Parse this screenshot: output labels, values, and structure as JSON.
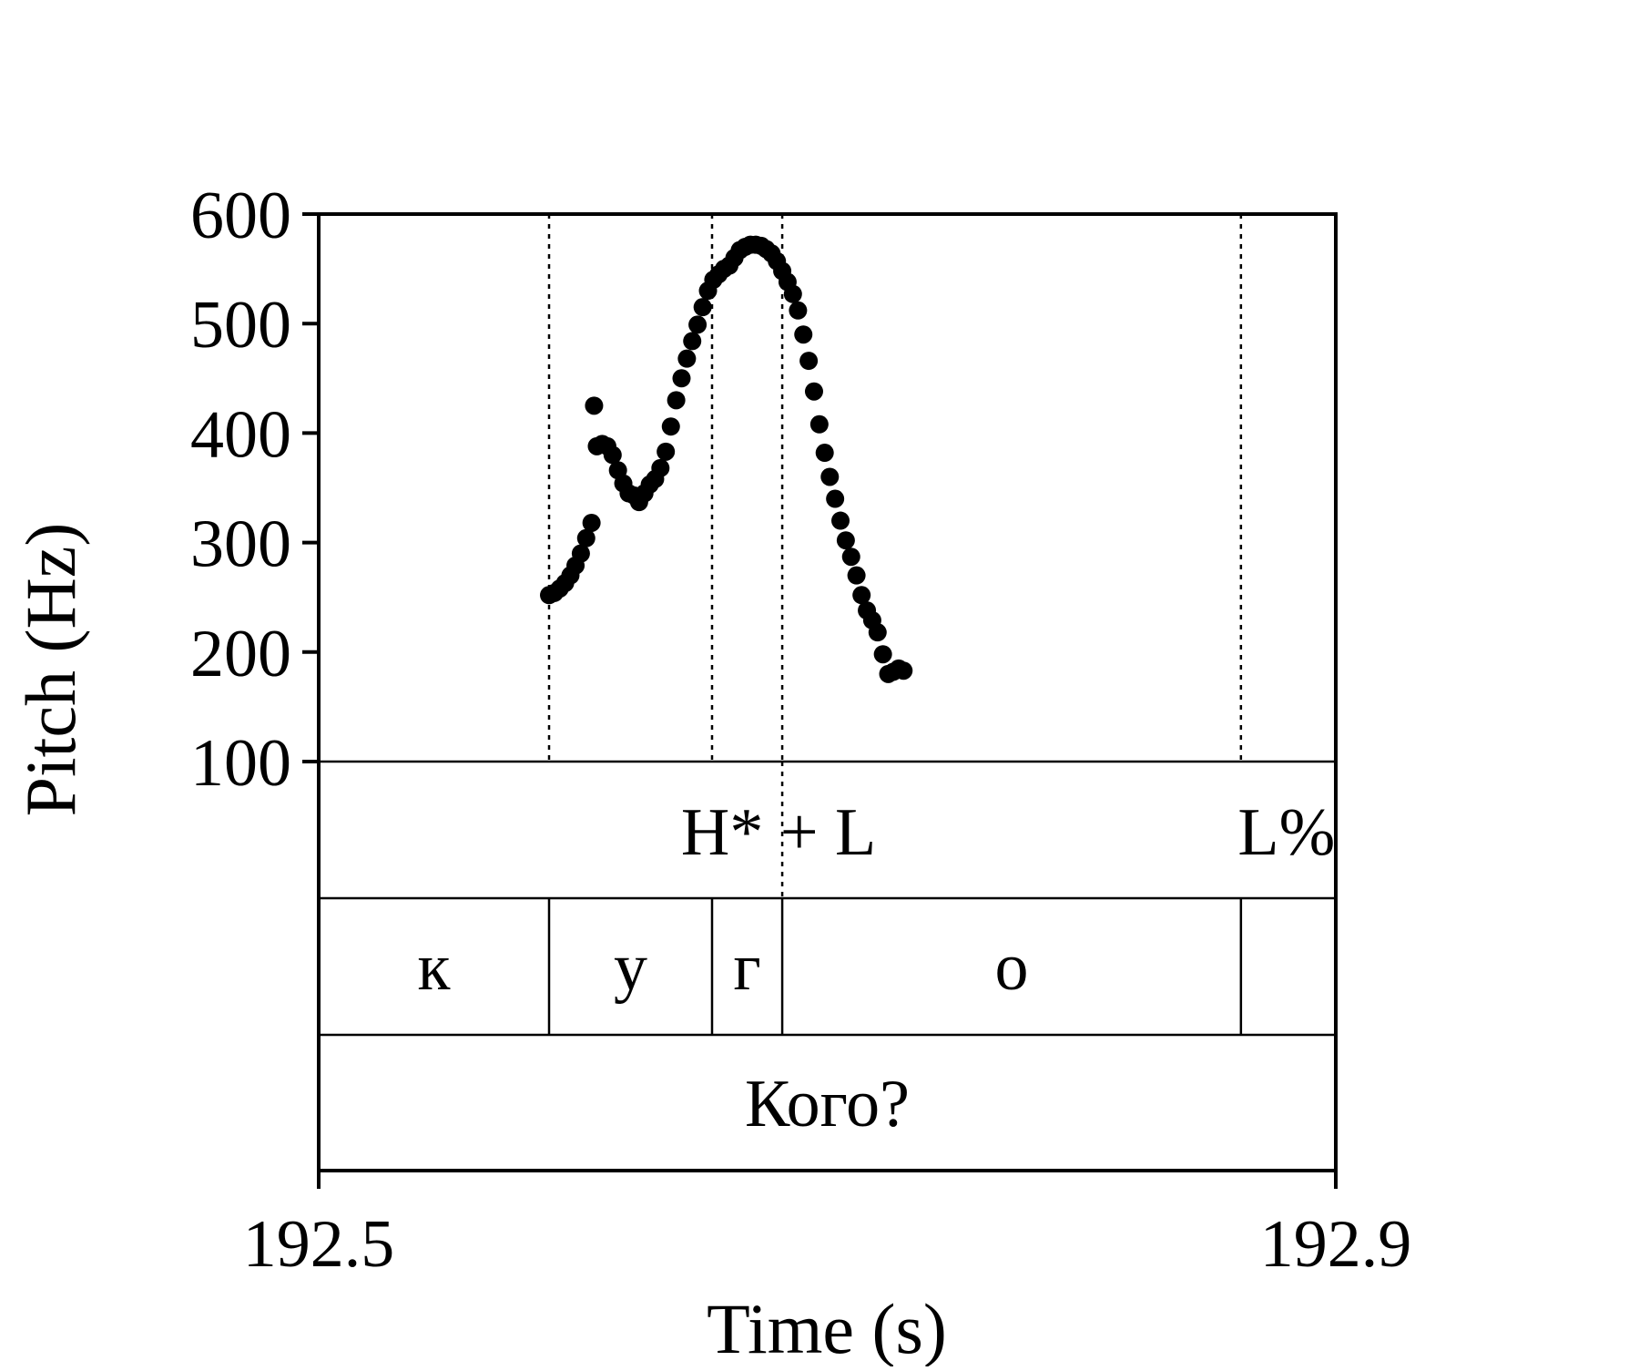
{
  "chart_data": {
    "type": "scatter",
    "ylabel": "Pitch (Hz)",
    "xlabel": "Time (s)",
    "xlim": [
      192.5,
      192.9
    ],
    "ylim": [
      100,
      600
    ],
    "x_ticks": [
      "192.5",
      "192.9"
    ],
    "y_ticks": [
      "100",
      "200",
      "300",
      "400",
      "500",
      "600"
    ],
    "boundaries": [
      192.5906,
      192.6547,
      192.6823,
      192.8627
    ],
    "tiers": {
      "tones": [
        {
          "label": "H* + L",
          "x": 192.6823
        },
        {
          "label": "L%",
          "x": 192.8627
        }
      ],
      "segments": [
        {
          "label": "к",
          "start": 192.5,
          "end": 192.5906
        },
        {
          "label": "у",
          "start": 192.5906,
          "end": 192.6547
        },
        {
          "label": "г",
          "start": 192.6547,
          "end": 192.6823
        },
        {
          "label": "о",
          "start": 192.6823,
          "end": 192.8627
        },
        {
          "label": "",
          "start": 192.8627,
          "end": 192.9
        }
      ],
      "word": "Кого?"
    },
    "series": [
      {
        "marker": "filled-circle",
        "color": "#000000",
        "points": [
          [
            192.5906,
            252
          ],
          [
            192.5927,
            254
          ],
          [
            192.5948,
            258
          ],
          [
            192.5969,
            263
          ],
          [
            192.599,
            270
          ],
          [
            192.601,
            279
          ],
          [
            192.6031,
            290
          ],
          [
            192.6052,
            304
          ],
          [
            192.6073,
            318
          ],
          [
            192.6083,
            425
          ],
          [
            192.6094,
            388
          ],
          [
            192.6115,
            390
          ],
          [
            192.6135,
            388
          ],
          [
            192.6156,
            380
          ],
          [
            192.6177,
            366
          ],
          [
            192.6198,
            354
          ],
          [
            192.6219,
            345
          ],
          [
            192.624,
            343
          ],
          [
            192.626,
            337
          ],
          [
            192.6281,
            345
          ],
          [
            192.6302,
            353
          ],
          [
            192.6323,
            358
          ],
          [
            192.6344,
            368
          ],
          [
            192.6365,
            383
          ],
          [
            192.6385,
            406
          ],
          [
            192.6406,
            430
          ],
          [
            192.6427,
            450
          ],
          [
            192.6448,
            468
          ],
          [
            192.6469,
            484
          ],
          [
            192.649,
            499
          ],
          [
            192.651,
            515
          ],
          [
            192.6531,
            530
          ],
          [
            192.6552,
            540
          ],
          [
            192.6573,
            545
          ],
          [
            192.6594,
            550
          ],
          [
            192.6615,
            553
          ],
          [
            192.6635,
            560
          ],
          [
            192.6656,
            567
          ],
          [
            192.6677,
            570
          ],
          [
            192.6698,
            572
          ],
          [
            192.6719,
            572
          ],
          [
            192.674,
            571
          ],
          [
            192.676,
            568
          ],
          [
            192.6781,
            564
          ],
          [
            192.6802,
            557
          ],
          [
            192.6823,
            548
          ],
          [
            192.6844,
            538
          ],
          [
            192.6865,
            527
          ],
          [
            192.6885,
            512
          ],
          [
            192.6906,
            490
          ],
          [
            192.6927,
            466
          ],
          [
            192.6948,
            438
          ],
          [
            192.6969,
            408
          ],
          [
            192.699,
            382
          ],
          [
            192.701,
            360
          ],
          [
            192.7031,
            340
          ],
          [
            192.7052,
            320
          ],
          [
            192.7073,
            302
          ],
          [
            192.7094,
            287
          ],
          [
            192.7115,
            270
          ],
          [
            192.7135,
            252
          ],
          [
            192.7156,
            238
          ],
          [
            192.7177,
            229
          ],
          [
            192.7198,
            218
          ],
          [
            192.7219,
            198
          ],
          [
            192.724,
            180
          ],
          [
            192.726,
            182
          ],
          [
            192.7281,
            185
          ],
          [
            192.73,
            183
          ]
        ]
      }
    ]
  }
}
